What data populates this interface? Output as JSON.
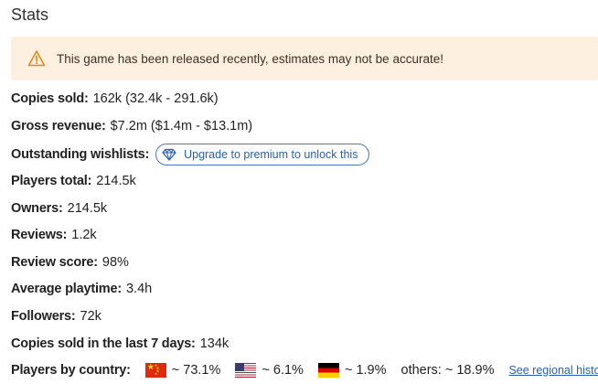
{
  "stats": {
    "title": "Stats",
    "warning": {
      "icon": "warning-triangle-icon",
      "text": "This game has been released recently, estimates may not be accurate!",
      "background": "#fdf0e0",
      "icon_color": "#e08a1e"
    },
    "copies_sold": {
      "label": "Copies sold:",
      "value": "162k (32.4k - 291.6k)"
    },
    "gross_revenue": {
      "label": "Gross revenue:",
      "value": "$7.2m ($1.4m - $13.1m)"
    },
    "outstanding_wishlists": {
      "label": "Outstanding wishlists:",
      "upgrade_button": {
        "icon": "diamond-icon",
        "label": "Upgrade to premium to unlock this",
        "color": "#2a5fb0"
      }
    },
    "players_total": {
      "label": "Players total:",
      "value": "214.5k"
    },
    "owners": {
      "label": "Owners:",
      "value": "214.5k"
    },
    "reviews": {
      "label": "Reviews:",
      "value": "1.2k"
    },
    "review_score": {
      "label": "Review score:",
      "value": "98%"
    },
    "average_playtime": {
      "label": "Average playtime:",
      "value": "3.4h"
    },
    "followers": {
      "label": "Followers:",
      "value": "72k"
    },
    "copies_last_7_days": {
      "label": "Copies sold in the last 7 days:",
      "value": "134k"
    },
    "players_by_country": {
      "label": "Players by country:",
      "countries": [
        {
          "flag": "china-flag-icon",
          "value": "~ 73.1%"
        },
        {
          "flag": "usa-flag-icon",
          "value": "~ 6.1%"
        },
        {
          "flag": "germany-flag-icon",
          "value": "~ 1.9%"
        }
      ],
      "others": "others: ~ 18.9%",
      "regional_history_link": "See regional history"
    }
  }
}
